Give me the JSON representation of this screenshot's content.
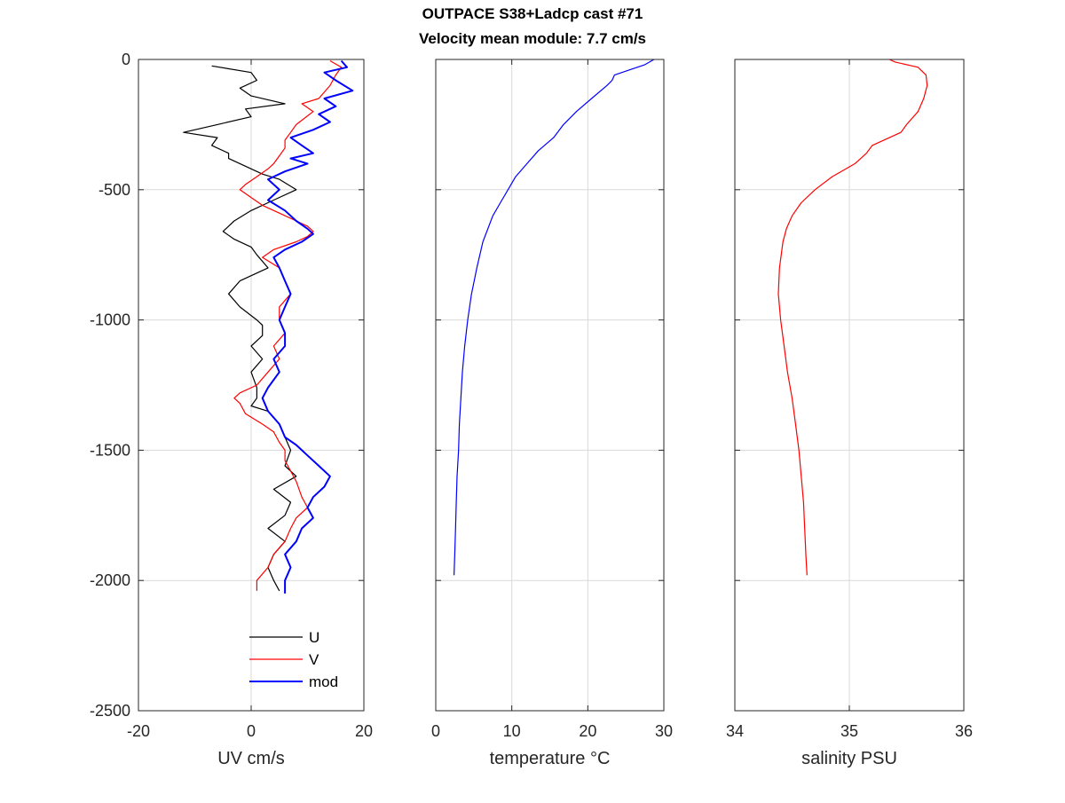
{
  "title": {
    "line1": "OUTPACE S38+Ladcp cast #71",
    "line2": "Velocity mean module:  7.7 cm/s"
  },
  "chart_data": [
    {
      "type": "line",
      "panel": "velocity",
      "xlabel": "UV cm/s",
      "ylabel": "",
      "xlim": [
        -20,
        20
      ],
      "ylim": [
        -2500,
        0
      ],
      "xticks": [
        -20,
        0,
        20
      ],
      "yticks": [
        0,
        -500,
        -1000,
        -1500,
        -2000,
        -2500
      ],
      "grid": true,
      "legend": "bottom-right",
      "colors": {
        "U": "#000000",
        "V": "#ff0000",
        "mod": "#0000ff"
      },
      "series": [
        {
          "name": "U",
          "depth": [
            -25,
            -50,
            -80,
            -110,
            -140,
            -170,
            -190,
            -220,
            -250,
            -280,
            -300,
            -330,
            -360,
            -380,
            -420,
            -440,
            -460,
            -500,
            -540,
            -580,
            -620,
            -660,
            -690,
            -720,
            -750,
            -800,
            -850,
            -900,
            -950,
            -1000,
            -1020,
            -1060,
            -1100,
            -1150,
            -1200,
            -1260,
            -1300,
            -1330,
            -1350,
            -1400,
            -1450,
            -1500,
            -1560,
            -1600,
            -1650,
            -1700,
            -1750,
            -1800,
            -1850,
            -1900,
            -1950,
            -2000,
            -2040
          ],
          "x": [
            -7,
            0,
            1,
            -2,
            0,
            6,
            -1,
            0,
            -6,
            -12,
            -6,
            -7,
            -4,
            -4,
            0,
            2,
            5,
            8,
            4,
            0,
            -3,
            -5,
            -3,
            0,
            1,
            3,
            -2,
            -4,
            -2,
            1,
            2,
            2,
            0,
            2,
            0,
            1,
            1,
            0,
            3,
            5,
            6,
            7,
            6,
            8,
            4,
            7,
            6,
            3,
            6,
            4,
            3,
            4,
            5
          ]
        },
        {
          "name": "V",
          "depth": [
            -5,
            -30,
            -60,
            -100,
            -150,
            -170,
            -200,
            -250,
            -280,
            -310,
            -340,
            -370,
            -400,
            -420,
            -450,
            -480,
            -500,
            -530,
            -560,
            -590,
            -620,
            -640,
            -660,
            -680,
            -700,
            -730,
            -760,
            -800,
            -850,
            -900,
            -950,
            -1000,
            -1050,
            -1100,
            -1150,
            -1200,
            -1250,
            -1280,
            -1300,
            -1320,
            -1360,
            -1400,
            -1430,
            -1470,
            -1500,
            -1540,
            -1580,
            -1620,
            -1680,
            -1720,
            -1760,
            -1800,
            -1850,
            -1900,
            -1950,
            -2000,
            -2040
          ],
          "x": [
            14,
            16,
            15,
            14,
            12,
            9,
            11,
            8,
            7,
            6,
            6,
            5,
            4,
            3,
            1,
            -1,
            -2,
            0,
            2,
            5,
            8,
            10,
            11,
            10,
            8,
            4,
            2,
            5,
            6,
            7,
            5,
            5,
            6,
            4,
            5,
            3,
            1,
            -2,
            -3,
            -2,
            -1,
            2,
            4,
            5,
            6,
            6,
            7,
            8,
            9,
            10,
            8,
            7,
            6,
            4,
            3,
            1,
            1
          ]
        },
        {
          "name": "mod",
          "depth": [
            -5,
            -30,
            -50,
            -80,
            -120,
            -150,
            -180,
            -210,
            -240,
            -270,
            -300,
            -330,
            -360,
            -380,
            -400,
            -430,
            -460,
            -500,
            -540,
            -580,
            -620,
            -650,
            -670,
            -700,
            -730,
            -760,
            -800,
            -850,
            -900,
            -950,
            -1000,
            -1050,
            -1100,
            -1150,
            -1200,
            -1260,
            -1300,
            -1350,
            -1400,
            -1450,
            -1480,
            -1520,
            -1560,
            -1600,
            -1640,
            -1680,
            -1720,
            -1760,
            -1800,
            -1850,
            -1900,
            -1950,
            -2000,
            -2050
          ],
          "x": [
            16,
            17,
            13,
            15,
            18,
            13,
            15,
            12,
            14,
            11,
            7,
            9,
            11,
            7,
            10,
            6,
            3,
            5,
            3,
            6,
            8,
            10,
            11,
            9,
            6,
            4,
            5,
            6,
            7,
            6,
            5,
            6,
            6,
            4,
            5,
            3,
            2,
            3,
            5,
            6,
            8,
            10,
            12,
            14,
            13,
            11,
            10,
            11,
            9,
            8,
            6,
            7,
            6,
            6
          ]
        }
      ]
    },
    {
      "type": "line",
      "panel": "temperature",
      "xlabel": "temperature °C",
      "ylabel": "",
      "xlim": [
        0,
        30
      ],
      "ylim": [
        -2500,
        0
      ],
      "xticks": [
        0,
        10,
        20,
        30
      ],
      "yticks": [
        0,
        -500,
        -1000,
        -1500,
        -2000,
        -2500
      ],
      "grid": true,
      "colors": {
        "line": "#0000ff"
      },
      "series": [
        {
          "depth": [
            0,
            -20,
            -40,
            -60,
            -80,
            -100,
            -150,
            -200,
            -250,
            -300,
            -350,
            -400,
            -450,
            -500,
            -550,
            -600,
            -700,
            -800,
            -900,
            -1000,
            -1100,
            -1200,
            -1300,
            -1400,
            -1500,
            -1600,
            -1700,
            -1800,
            -1900,
            -1980
          ],
          "x": [
            28.7,
            27.5,
            25.5,
            23.5,
            23.2,
            22.5,
            20.5,
            18.5,
            16.8,
            15.5,
            13.5,
            12.0,
            10.5,
            9.5,
            8.5,
            7.5,
            6.2,
            5.4,
            4.7,
            4.2,
            3.8,
            3.5,
            3.3,
            3.1,
            3.0,
            2.8,
            2.7,
            2.6,
            2.5,
            2.4
          ]
        }
      ]
    },
    {
      "type": "line",
      "panel": "salinity",
      "xlabel": "salinity PSU",
      "ylabel": "",
      "xlim": [
        34,
        36
      ],
      "ylim": [
        -2500,
        0
      ],
      "xticks": [
        34,
        35,
        36
      ],
      "yticks": [
        0,
        -500,
        -1000,
        -1500,
        -2000,
        -2500
      ],
      "grid": true,
      "colors": {
        "line": "#ff0000"
      },
      "series": [
        {
          "depth": [
            0,
            -10,
            -30,
            -60,
            -100,
            -150,
            -200,
            -250,
            -280,
            -300,
            -330,
            -360,
            -400,
            -450,
            -500,
            -550,
            -600,
            -650,
            -700,
            -800,
            -900,
            -1000,
            -1100,
            -1200,
            -1300,
            -1400,
            -1500,
            -1600,
            -1700,
            -1800,
            -1900,
            -1980
          ],
          "x": [
            35.35,
            35.4,
            35.6,
            35.67,
            35.68,
            35.65,
            35.6,
            35.5,
            35.45,
            35.35,
            35.2,
            35.15,
            35.05,
            34.85,
            34.7,
            34.58,
            34.5,
            34.45,
            34.42,
            34.39,
            34.38,
            34.4,
            34.43,
            34.46,
            34.5,
            34.53,
            34.56,
            34.58,
            34.6,
            34.61,
            34.62,
            34.63
          ]
        }
      ]
    }
  ]
}
